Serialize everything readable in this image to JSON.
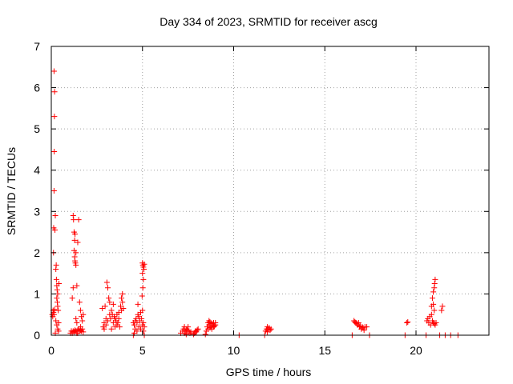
{
  "chart_data": {
    "type": "scatter",
    "title": "Day 334 of 2023, SRMTID for receiver ascg",
    "xlabel": "GPS time / hours",
    "ylabel": "SRMTID / TECUs",
    "xlim": [
      0,
      24
    ],
    "ylim": [
      0,
      7
    ],
    "xticks": [
      0,
      5,
      10,
      15,
      20
    ],
    "yticks": [
      0,
      1,
      2,
      3,
      4,
      5,
      6,
      7
    ],
    "grid": true,
    "marker": "plus",
    "color": "#ff0000",
    "series": [
      {
        "name": "SRMTID",
        "points": [
          [
            0.05,
            0.5
          ],
          [
            0.08,
            0.45
          ],
          [
            0.1,
            0.6
          ],
          [
            0.12,
            0.55
          ],
          [
            0.15,
            0.5
          ],
          [
            0.18,
            0.62
          ],
          [
            0.12,
            2.0
          ],
          [
            0.13,
            2.6
          ],
          [
            0.15,
            3.5
          ],
          [
            0.16,
            4.45
          ],
          [
            0.17,
            5.3
          ],
          [
            0.18,
            5.9
          ],
          [
            0.15,
            6.4
          ],
          [
            0.2,
            2.55
          ],
          [
            0.22,
            2.9
          ],
          [
            0.25,
            1.6
          ],
          [
            0.27,
            1.7
          ],
          [
            0.28,
            1.35
          ],
          [
            0.3,
            1.2
          ],
          [
            0.32,
            1.1
          ],
          [
            0.3,
            0.9
          ],
          [
            0.33,
            0.8
          ],
          [
            0.35,
            0.7
          ],
          [
            0.38,
            0.6
          ],
          [
            0.25,
            0.35
          ],
          [
            0.3,
            0.25
          ],
          [
            0.35,
            0.15
          ],
          [
            0.4,
            0.1
          ],
          [
            0.22,
            0.05
          ],
          [
            0.4,
            0.3
          ],
          [
            0.42,
            1.25
          ],
          [
            0.35,
            1.0
          ],
          [
            1.05,
            0.05
          ],
          [
            1.1,
            0.1
          ],
          [
            1.15,
            0.05
          ],
          [
            1.2,
            0.1
          ],
          [
            1.25,
            0.08
          ],
          [
            1.3,
            0.12
          ],
          [
            1.35,
            0.1
          ],
          [
            1.4,
            0.05
          ],
          [
            1.45,
            0.12
          ],
          [
            1.5,
            0.15
          ],
          [
            1.55,
            0.1
          ],
          [
            1.6,
            0.12
          ],
          [
            1.65,
            0.1
          ],
          [
            1.7,
            0.15
          ],
          [
            1.75,
            0.08
          ],
          [
            1.45,
            0.05
          ],
          [
            1.6,
            0.2
          ],
          [
            1.2,
            2.9
          ],
          [
            1.22,
            2.8
          ],
          [
            1.25,
            2.5
          ],
          [
            1.3,
            2.45
          ],
          [
            1.35,
            2.0
          ],
          [
            1.28,
            1.9
          ],
          [
            1.3,
            1.8
          ],
          [
            1.32,
            1.75
          ],
          [
            1.35,
            1.7
          ],
          [
            1.25,
            2.05
          ],
          [
            1.28,
            2.3
          ],
          [
            1.4,
            1.2
          ],
          [
            1.45,
            2.25
          ],
          [
            1.5,
            2.8
          ],
          [
            1.2,
            1.15
          ],
          [
            1.15,
            0.9
          ],
          [
            1.4,
            0.3
          ],
          [
            1.55,
            0.8
          ],
          [
            1.6,
            0.6
          ],
          [
            1.65,
            0.45
          ],
          [
            1.7,
            0.35
          ],
          [
            1.75,
            0.5
          ],
          [
            1.35,
            0.4
          ],
          [
            2.8,
            0.65
          ],
          [
            2.85,
            0.2
          ],
          [
            2.9,
            0.3
          ],
          [
            2.95,
            0.7
          ],
          [
            3.0,
            0.25
          ],
          [
            3.05,
            1.28
          ],
          [
            3.1,
            1.15
          ],
          [
            3.15,
            0.9
          ],
          [
            3.2,
            0.5
          ],
          [
            3.25,
            0.4
          ],
          [
            3.1,
            0.35
          ],
          [
            3.0,
            0.4
          ],
          [
            2.9,
            0.15
          ],
          [
            3.3,
            0.6
          ],
          [
            3.35,
            0.5
          ],
          [
            3.4,
            0.75
          ],
          [
            3.45,
            0.45
          ],
          [
            3.5,
            0.4
          ],
          [
            3.55,
            0.35
          ],
          [
            3.6,
            0.5
          ],
          [
            3.65,
            0.3
          ],
          [
            3.7,
            0.55
          ],
          [
            3.75,
            0.2
          ],
          [
            3.8,
            0.7
          ],
          [
            3.85,
            0.6
          ],
          [
            3.9,
            0.8
          ],
          [
            3.95,
            0.65
          ],
          [
            3.9,
            1.0
          ],
          [
            3.85,
            0.9
          ],
          [
            3.6,
            0.25
          ],
          [
            3.4,
            0.3
          ],
          [
            3.3,
            0.15
          ],
          [
            3.5,
            0.2
          ],
          [
            3.7,
            0.4
          ],
          [
            3.2,
            0.8
          ],
          [
            4.5,
            0.3
          ],
          [
            4.55,
            0.25
          ],
          [
            4.6,
            0.35
          ],
          [
            4.65,
            0.4
          ],
          [
            4.7,
            0.3
          ],
          [
            4.75,
            0.5
          ],
          [
            4.8,
            0.45
          ],
          [
            4.85,
            0.35
          ],
          [
            4.9,
            0.55
          ],
          [
            4.95,
            0.4
          ],
          [
            5.0,
            0.6
          ],
          [
            5.05,
            0.3
          ],
          [
            4.6,
            0.15
          ],
          [
            4.7,
            0.1
          ],
          [
            4.8,
            0.2
          ],
          [
            4.9,
            0.15
          ],
          [
            5.0,
            0.25
          ],
          [
            5.05,
            0.1
          ],
          [
            5.1,
            0.2
          ],
          [
            4.75,
            0.75
          ],
          [
            5.0,
            1.75
          ],
          [
            5.02,
            1.7
          ],
          [
            5.05,
            1.65
          ],
          [
            5.08,
            1.6
          ],
          [
            5.1,
            1.72
          ],
          [
            5.0,
            1.5
          ],
          [
            5.05,
            1.35
          ],
          [
            5.02,
            1.15
          ],
          [
            4.98,
            0.95
          ],
          [
            5.1,
            0.0
          ],
          [
            4.5,
            0.0
          ],
          [
            4.55,
            0.05
          ],
          [
            7.1,
            0.05
          ],
          [
            7.2,
            0.1
          ],
          [
            7.25,
            0.15
          ],
          [
            7.3,
            0.2
          ],
          [
            7.35,
            0.1
          ],
          [
            7.4,
            0.15
          ],
          [
            7.45,
            0.12
          ],
          [
            7.5,
            0.2
          ],
          [
            7.55,
            0.1
          ],
          [
            7.6,
            0.05
          ],
          [
            7.65,
            0.08
          ],
          [
            7.3,
            0.05
          ],
          [
            7.4,
            0.02
          ],
          [
            7.8,
            0.02
          ],
          [
            7.85,
            0.05
          ],
          [
            7.9,
            0.1
          ],
          [
            7.95,
            0.08
          ],
          [
            8.0,
            0.12
          ],
          [
            8.05,
            0.15
          ],
          [
            8.45,
            0.02
          ],
          [
            8.5,
            0.1
          ],
          [
            8.55,
            0.2
          ],
          [
            8.6,
            0.3
          ],
          [
            8.65,
            0.25
          ],
          [
            8.7,
            0.32
          ],
          [
            8.75,
            0.2
          ],
          [
            8.8,
            0.28
          ],
          [
            8.85,
            0.25
          ],
          [
            8.9,
            0.3
          ],
          [
            8.95,
            0.22
          ],
          [
            9.0,
            0.25
          ],
          [
            8.6,
            0.15
          ],
          [
            8.7,
            0.18
          ],
          [
            8.8,
            0.15
          ],
          [
            8.9,
            0.2
          ],
          [
            9.0,
            0.3
          ],
          [
            8.65,
            0.35
          ],
          [
            10.3,
            0.0
          ],
          [
            11.7,
            0.0
          ],
          [
            11.75,
            0.1
          ],
          [
            11.8,
            0.15
          ],
          [
            11.85,
            0.2
          ],
          [
            11.9,
            0.15
          ],
          [
            11.95,
            0.18
          ],
          [
            12.0,
            0.12
          ],
          [
            12.05,
            0.15
          ],
          [
            11.85,
            0.08
          ],
          [
            16.5,
            0.0
          ],
          [
            16.6,
            0.35
          ],
          [
            16.65,
            0.32
          ],
          [
            16.7,
            0.3
          ],
          [
            16.75,
            0.28
          ],
          [
            16.8,
            0.25
          ],
          [
            16.85,
            0.3
          ],
          [
            16.9,
            0.2
          ],
          [
            16.95,
            0.22
          ],
          [
            17.0,
            0.15
          ],
          [
            17.05,
            0.2
          ],
          [
            17.1,
            0.18
          ],
          [
            17.15,
            0.12
          ],
          [
            17.2,
            0.2
          ],
          [
            17.3,
            0.2
          ],
          [
            17.45,
            0.0
          ],
          [
            19.4,
            0.0
          ],
          [
            19.5,
            0.3
          ],
          [
            19.55,
            0.32
          ],
          [
            20.55,
            0.0
          ],
          [
            20.6,
            0.35
          ],
          [
            20.65,
            0.4
          ],
          [
            20.7,
            0.3
          ],
          [
            20.75,
            0.45
          ],
          [
            20.8,
            0.25
          ],
          [
            20.85,
            0.5
          ],
          [
            20.9,
            0.35
          ],
          [
            20.95,
            0.3
          ],
          [
            21.0,
            0.28
          ],
          [
            21.05,
            0.25
          ],
          [
            21.1,
            0.3
          ],
          [
            20.85,
            0.7
          ],
          [
            20.9,
            0.9
          ],
          [
            20.95,
            1.05
          ],
          [
            21.0,
            1.15
          ],
          [
            21.02,
            1.25
          ],
          [
            21.05,
            1.35
          ],
          [
            21.0,
            0.6
          ],
          [
            20.95,
            0.75
          ],
          [
            21.3,
            0.0
          ],
          [
            21.4,
            0.6
          ],
          [
            21.45,
            0.7
          ],
          [
            21.6,
            0.0
          ],
          [
            21.9,
            0.0
          ],
          [
            22.3,
            0.0
          ]
        ]
      }
    ]
  }
}
